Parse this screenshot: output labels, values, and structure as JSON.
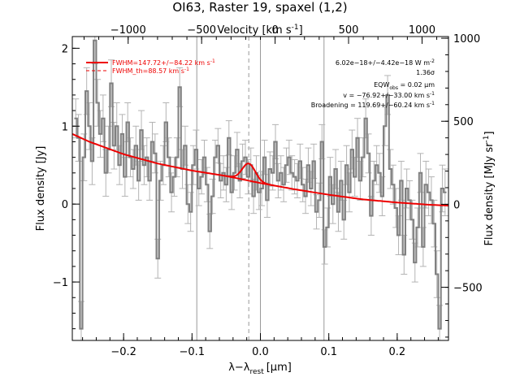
{
  "chart_data": {
    "type": "line",
    "title": "OI63, Raster 19, spaxel (1,2)",
    "xlabel": "λ−λ",
    "xlabel_sub": "rest",
    "xlabel_unit": "[μm]",
    "ylabel": "Flux density [Jy]",
    "top_xlabel": "Velocity [km s",
    "top_xlabel_sup": "-1",
    "top_xlabel_end": "]",
    "right_ylabel": "Flux density [MJy sr",
    "right_ylabel_sup": "-1",
    "right_ylabel_end": "]",
    "xlim": [
      -0.275,
      0.275
    ],
    "ylim": [
      -1.75,
      2.15
    ],
    "right_ylim": [
      -820,
      1010
    ],
    "top_xlim": [
      -1380,
      1180
    ],
    "x_ticks": [
      {
        "value": -0.2,
        "label": "−0.2"
      },
      {
        "value": -0.1,
        "label": "−0.1"
      },
      {
        "value": 0.0,
        "label": "0.0"
      },
      {
        "value": 0.1,
        "label": "0.1"
      },
      {
        "value": 0.2,
        "label": "0.2"
      }
    ],
    "y_ticks": [
      {
        "value": -1,
        "label": "−1"
      },
      {
        "value": 0,
        "label": "0"
      },
      {
        "value": 1,
        "label": "1"
      },
      {
        "value": 2,
        "label": "2"
      }
    ],
    "top_ticks": [
      {
        "value": -1000,
        "label": "−1000"
      },
      {
        "value": -500,
        "label": "−500"
      },
      {
        "value": 0,
        "label": "0"
      },
      {
        "value": 500,
        "label": "500"
      },
      {
        "value": 1000,
        "label": "1000"
      }
    ],
    "right_ticks": [
      {
        "value": -500,
        "label": "−500"
      },
      {
        "value": 0,
        "label": "0"
      },
      {
        "value": 500,
        "label": "500"
      },
      {
        "value": 1000,
        "label": "1000"
      }
    ],
    "vertical_lines": [
      -0.093,
      0.0,
      0.093
    ],
    "dashed_line": -0.017,
    "legend": [
      {
        "label": "FWHM=147.72+/−84.22 km s",
        "sup": "-1",
        "style": "solid"
      },
      {
        "label": "FWHM_th=88.57 km s",
        "sup": "-1",
        "style": "dashed"
      }
    ],
    "annotations": [
      {
        "text": "6.02e−18+/−4.42e−18 W m",
        "sup": "-2"
      },
      {
        "text": "1.36σ"
      },
      {
        "text": "EQW",
        "sub": "obs",
        "rest": " = 0.02 μm"
      },
      {
        "text": "v = −76.92+/−33.00 km s",
        "sup": "-1"
      },
      {
        "text": "Broadening = 119.69+/−60.24 km s",
        "sup": "-1"
      }
    ],
    "spectrum": {
      "x": [
        -0.27,
        -0.266,
        -0.262,
        -0.258,
        -0.254,
        -0.25,
        -0.246,
        -0.242,
        -0.238,
        -0.234,
        -0.23,
        -0.226,
        -0.222,
        -0.218,
        -0.214,
        -0.21,
        -0.206,
        -0.202,
        -0.198,
        -0.194,
        -0.19,
        -0.186,
        -0.182,
        -0.178,
        -0.174,
        -0.17,
        -0.166,
        -0.162,
        -0.158,
        -0.154,
        -0.15,
        -0.146,
        -0.142,
        -0.138,
        -0.134,
        -0.13,
        -0.126,
        -0.122,
        -0.118,
        -0.114,
        -0.11,
        -0.106,
        -0.102,
        -0.098,
        -0.094,
        -0.09,
        -0.086,
        -0.082,
        -0.078,
        -0.074,
        -0.07,
        -0.066,
        -0.062,
        -0.058,
        -0.054,
        -0.05,
        -0.046,
        -0.042,
        -0.038,
        -0.034,
        -0.03,
        -0.026,
        -0.022,
        -0.018,
        -0.014,
        -0.01,
        -0.006,
        -0.002,
        0.002,
        0.006,
        0.01,
        0.014,
        0.018,
        0.022,
        0.026,
        0.03,
        0.034,
        0.038,
        0.042,
        0.046,
        0.05,
        0.054,
        0.058,
        0.062,
        0.066,
        0.07,
        0.074,
        0.078,
        0.082,
        0.086,
        0.09,
        0.094,
        0.098,
        0.102,
        0.106,
        0.11,
        0.114,
        0.118,
        0.122,
        0.126,
        0.13,
        0.134,
        0.138,
        0.142,
        0.146,
        0.15,
        0.154,
        0.158,
        0.162,
        0.166,
        0.17,
        0.174,
        0.178,
        0.182,
        0.186,
        0.19,
        0.194,
        0.198,
        0.202,
        0.206,
        0.21,
        0.214,
        0.218,
        0.222,
        0.226,
        0.23,
        0.234,
        0.238,
        0.242,
        0.246,
        0.25,
        0.254,
        0.258,
        0.262,
        0.266,
        0.27
      ],
      "y": [
        1.1,
        0.85,
        -1.6,
        0.6,
        1.45,
        1.0,
        0.55,
        2.1,
        1.3,
        0.9,
        1.1,
        0.4,
        0.7,
        1.55,
        0.75,
        1.0,
        0.5,
        0.9,
        0.35,
        1.05,
        0.6,
        0.45,
        0.75,
        0.3,
        0.95,
        0.5,
        0.6,
        0.3,
        0.8,
        0.65,
        -0.7,
        0.3,
        0.5,
        1.05,
        0.6,
        0.15,
        0.35,
        0.6,
        1.5,
        0.45,
        0.75,
        0.0,
        -0.1,
        0.5,
        0.7,
        0.2,
        0.35,
        0.6,
        0.25,
        -0.35,
        0.1,
        0.6,
        0.75,
        0.3,
        0.4,
        0.25,
        0.85,
        0.15,
        0.4,
        0.7,
        0.3,
        0.55,
        0.6,
        0.35,
        0.5,
        0.1,
        0.4,
        0.15,
        0.2,
        0.6,
        0.05,
        0.45,
        0.4,
        0.8,
        0.3,
        0.4,
        0.25,
        0.5,
        0.6,
        0.4,
        0.35,
        0.3,
        0.55,
        0.25,
        0.1,
        0.5,
        0.2,
        0.55,
        -0.1,
        0.05,
        0.8,
        -0.55,
        -0.3,
        0.35,
        0.0,
        0.45,
        -0.1,
        0.3,
        -0.2,
        0.5,
        0.15,
        0.7,
        0.35,
        0.85,
        0.3,
        0.6,
        1.1,
        0.65,
        -0.15,
        0.3,
        0.5,
        0.4,
        0.1,
        1.0,
        1.4,
        0.45,
        0.25,
        -0.05,
        -0.4,
        0.3,
        -0.65,
        0.2,
        0.05,
        -0.2,
        -0.75,
        -0.3,
        0.4,
        -0.55,
        0.25,
        0.15,
        0.05,
        -0.25,
        -0.9,
        -1.6,
        0.2,
        0.15
      ],
      "yerr": [
        0.25,
        0.3,
        0.35,
        0.3,
        0.3,
        0.3,
        0.3,
        0.3,
        0.3,
        0.3,
        0.3,
        0.3,
        0.3,
        0.3,
        0.3,
        0.3,
        0.25,
        0.25,
        0.25,
        0.25,
        0.25,
        0.25,
        0.25,
        0.25,
        0.25,
        0.25,
        0.25,
        0.25,
        0.25,
        0.25,
        0.25,
        0.25,
        0.25,
        0.25,
        0.25,
        0.25,
        0.25,
        0.25,
        0.25,
        0.25,
        0.25,
        0.25,
        0.25,
        0.25,
        0.25,
        0.22,
        0.22,
        0.22,
        0.22,
        0.22,
        0.22,
        0.22,
        0.22,
        0.22,
        0.22,
        0.22,
        0.22,
        0.22,
        0.22,
        0.22,
        0.22,
        0.22,
        0.22,
        0.22,
        0.22,
        0.22,
        0.22,
        0.22,
        0.22,
        0.22,
        0.22,
        0.22,
        0.22,
        0.22,
        0.22,
        0.22,
        0.22,
        0.22,
        0.22,
        0.22,
        0.22,
        0.22,
        0.22,
        0.22,
        0.22,
        0.22,
        0.22,
        0.22,
        0.22,
        0.22,
        0.22,
        0.22,
        0.25,
        0.25,
        0.25,
        0.25,
        0.25,
        0.25,
        0.25,
        0.25,
        0.25,
        0.25,
        0.25,
        0.25,
        0.25,
        0.25,
        0.25,
        0.25,
        0.25,
        0.25,
        0.25,
        0.25,
        0.25,
        0.25,
        0.25,
        0.25,
        0.25,
        0.25,
        0.25,
        0.25,
        0.25,
        0.25,
        0.25,
        0.25,
        0.25,
        0.25,
        0.25,
        0.25,
        0.3,
        0.3,
        0.3,
        0.3,
        0.3,
        0.3,
        0.3,
        0.3
      ]
    },
    "fit": {
      "baseline_x": [
        -0.275,
        -0.25,
        -0.2,
        -0.15,
        -0.1,
        -0.05,
        0.0,
        0.05,
        0.1,
        0.15,
        0.2,
        0.25,
        0.275
      ],
      "baseline_y": [
        0.9,
        0.8,
        0.64,
        0.52,
        0.43,
        0.36,
        0.27,
        0.19,
        0.12,
        0.06,
        0.02,
        -0.01,
        -0.02
      ],
      "peak_center": -0.017,
      "peak_amplitude": 0.22,
      "peak_sigma": 0.0095,
      "color": "#ee0000"
    },
    "data_color": "#808080",
    "errbar_color": "#b4b4b4",
    "guide_color": "#999999"
  }
}
